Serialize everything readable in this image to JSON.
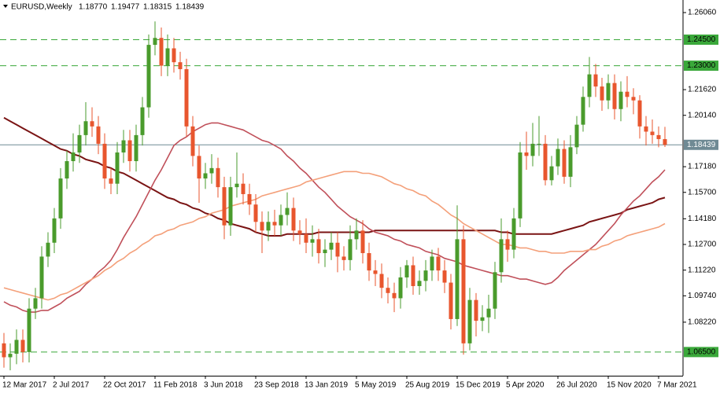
{
  "chart_data": {
    "type": "candlestick",
    "title": "EURUSD,Weekly",
    "quote_labels": [
      "1.18770",
      "1.19477",
      "1.18315",
      "1.18439"
    ],
    "categories": [
      "12 Mar 2017",
      null,
      null,
      null,
      null,
      null,
      null,
      null,
      "2 Jul 2017",
      null,
      null,
      null,
      null,
      null,
      null,
      null,
      "22 Oct 2017",
      null,
      null,
      null,
      null,
      null,
      null,
      null,
      "11 Feb 2018",
      null,
      null,
      null,
      null,
      null,
      null,
      null,
      "3 Jun 2018",
      null,
      null,
      null,
      null,
      null,
      null,
      null,
      "23 Sep 2018",
      null,
      null,
      null,
      null,
      null,
      null,
      null,
      "13 Jan 2019",
      null,
      null,
      null,
      null,
      null,
      null,
      null,
      "5 May 2019",
      null,
      null,
      null,
      null,
      null,
      null,
      null,
      "25 Aug 2019",
      null,
      null,
      null,
      null,
      null,
      null,
      null,
      "15 Dec 2019",
      null,
      null,
      null,
      null,
      null,
      null,
      null,
      "5 Apr 2020",
      null,
      null,
      null,
      null,
      null,
      null,
      null,
      "26 Jul 2020",
      null,
      null,
      null,
      null,
      null,
      null,
      null,
      "15 Nov 2020",
      null,
      null,
      null,
      null,
      null,
      null,
      null,
      "7 Mar 2021",
      null
    ],
    "open": [
      1.07,
      1.062,
      1.064,
      1.072,
      1.065,
      1.09,
      1.096,
      1.12,
      1.128,
      1.142,
      1.165,
      1.175,
      1.18,
      1.19,
      1.198,
      1.195,
      1.185,
      1.165,
      1.162,
      1.18,
      1.187,
      1.175,
      1.19,
      1.206,
      1.242,
      1.246,
      1.23,
      1.24,
      1.232,
      1.228,
      1.195,
      1.178,
      1.165,
      1.168,
      1.171,
      1.16,
      1.138,
      1.16,
      1.162,
      1.156,
      1.15,
      1.14,
      1.135,
      1.14,
      1.138,
      1.144,
      1.148,
      1.135,
      1.133,
      1.128,
      1.13,
      1.122,
      1.124,
      1.128,
      1.12,
      1.118,
      1.13,
      1.135,
      1.122,
      1.112,
      1.11,
      1.102,
      1.099,
      1.096,
      1.108,
      1.115,
      1.103,
      1.106,
      1.112,
      1.12,
      1.112,
      1.105,
      1.084,
      1.13,
      1.07,
      1.095,
      1.083,
      1.085,
      1.09,
      1.111,
      1.13,
      1.124,
      1.142,
      1.18,
      1.178,
      1.185,
      1.185,
      1.164,
      1.172,
      1.182,
      1.166,
      1.183,
      1.196,
      1.212,
      1.225,
      1.218,
      1.21,
      1.22,
      1.205,
      1.215,
      1.212,
      1.21,
      1.195,
      1.192,
      1.19,
      1.1877
    ],
    "high": [
      1.076,
      1.07,
      1.078,
      1.078,
      1.096,
      1.102,
      1.126,
      1.134,
      1.148,
      1.171,
      1.181,
      1.191,
      1.196,
      1.209,
      1.206,
      1.201,
      1.191,
      1.171,
      1.186,
      1.193,
      1.193,
      1.196,
      1.212,
      1.248,
      1.2555,
      1.252,
      1.248,
      1.246,
      1.238,
      1.234,
      1.201,
      1.184,
      1.174,
      1.179,
      1.177,
      1.166,
      1.166,
      1.18,
      1.168,
      1.162,
      1.156,
      1.146,
      1.146,
      1.147,
      1.15,
      1.157,
      1.154,
      1.141,
      1.142,
      1.138,
      1.136,
      1.13,
      1.134,
      1.134,
      1.126,
      1.138,
      1.142,
      1.141,
      1.128,
      1.118,
      1.116,
      1.108,
      1.105,
      1.114,
      1.118,
      1.12,
      1.112,
      1.118,
      1.124,
      1.125,
      1.118,
      1.11,
      1.1495,
      1.138,
      1.102,
      1.099,
      1.092,
      1.098,
      1.117,
      1.142,
      1.135,
      1.148,
      1.186,
      1.192,
      1.197,
      1.201,
      1.19,
      1.178,
      1.188,
      1.187,
      1.19,
      1.201,
      1.218,
      1.235,
      1.231,
      1.223,
      1.225,
      1.225,
      1.221,
      1.224,
      1.217,
      1.213,
      1.201,
      1.199,
      1.195,
      1.19477
    ],
    "low": [
      1.056,
      1.0545,
      1.058,
      1.059,
      1.059,
      1.084,
      1.09,
      1.114,
      1.122,
      1.136,
      1.159,
      1.169,
      1.174,
      1.184,
      1.189,
      1.179,
      1.159,
      1.156,
      1.156,
      1.174,
      1.169,
      1.169,
      1.184,
      1.2,
      1.236,
      1.224,
      1.224,
      1.226,
      1.222,
      1.189,
      1.172,
      1.151,
      1.159,
      1.162,
      1.154,
      1.13,
      1.132,
      1.154,
      1.15,
      1.144,
      1.134,
      1.122,
      1.129,
      1.132,
      1.132,
      1.138,
      1.129,
      1.127,
      1.122,
      1.12,
      1.116,
      1.114,
      1.118,
      1.111,
      1.112,
      1.112,
      1.124,
      1.116,
      1.106,
      1.103,
      1.096,
      1.093,
      1.088,
      1.09,
      1.102,
      1.098,
      1.098,
      1.1,
      1.106,
      1.106,
      1.099,
      1.078,
      1.08,
      1.0635,
      1.066,
      1.074,
      1.077,
      1.076,
      1.084,
      1.105,
      1.117,
      1.119,
      1.137,
      1.17,
      1.172,
      1.178,
      1.161,
      1.161,
      1.167,
      1.162,
      1.16,
      1.179,
      1.192,
      1.206,
      1.212,
      1.204,
      1.205,
      1.199,
      1.198,
      1.206,
      1.202,
      1.188,
      1.184,
      1.185,
      1.183,
      1.18315
    ],
    "close": [
      1.062,
      1.064,
      1.072,
      1.065,
      1.09,
      1.096,
      1.12,
      1.128,
      1.142,
      1.165,
      1.175,
      1.18,
      1.19,
      1.198,
      1.195,
      1.185,
      1.165,
      1.162,
      1.18,
      1.187,
      1.175,
      1.19,
      1.206,
      1.242,
      1.246,
      1.23,
      1.24,
      1.232,
      1.228,
      1.195,
      1.178,
      1.165,
      1.168,
      1.171,
      1.16,
      1.138,
      1.16,
      1.162,
      1.156,
      1.15,
      1.14,
      1.135,
      1.14,
      1.138,
      1.144,
      1.148,
      1.135,
      1.133,
      1.128,
      1.13,
      1.122,
      1.124,
      1.128,
      1.12,
      1.118,
      1.13,
      1.135,
      1.122,
      1.112,
      1.11,
      1.102,
      1.099,
      1.096,
      1.108,
      1.115,
      1.103,
      1.106,
      1.112,
      1.12,
      1.112,
      1.105,
      1.084,
      1.13,
      1.07,
      1.095,
      1.083,
      1.085,
      1.09,
      1.111,
      1.13,
      1.124,
      1.142,
      1.18,
      1.178,
      1.185,
      1.185,
      1.164,
      1.172,
      1.182,
      1.166,
      1.183,
      1.196,
      1.212,
      1.225,
      1.218,
      1.21,
      1.22,
      1.205,
      1.215,
      1.212,
      1.21,
      1.195,
      1.192,
      1.19,
      1.1877,
      1.18439
    ],
    "up_color": "#4a9b2c",
    "down_color": "#e8562e",
    "overlays": [
      {
        "color": "#7a1414",
        "values": [
          1.2,
          1.198,
          1.196,
          1.194,
          1.192,
          1.19,
          1.188,
          1.186,
          1.184,
          1.182,
          1.181,
          1.179,
          1.178,
          1.176,
          1.175,
          1.174,
          1.172,
          1.171,
          1.169,
          1.168,
          1.166,
          1.164,
          1.162,
          1.16,
          1.158,
          1.156,
          1.154,
          1.153,
          1.151,
          1.15,
          1.148,
          1.147,
          1.145,
          1.144,
          1.142,
          1.141,
          1.139,
          1.138,
          1.137,
          1.136,
          1.134,
          1.133,
          1.132,
          1.132,
          1.132,
          1.133,
          1.133,
          1.133,
          1.133,
          1.133,
          1.134,
          1.134,
          1.134,
          1.134,
          1.134,
          1.134,
          1.134,
          1.134,
          1.134,
          1.135,
          1.135,
          1.135,
          1.135,
          1.135,
          1.135,
          1.135,
          1.135,
          1.135,
          1.135,
          1.135,
          1.135,
          1.135,
          1.135,
          1.135,
          1.135,
          1.135,
          1.135,
          1.135,
          1.135,
          1.134,
          1.134,
          1.133,
          1.133,
          1.133,
          1.133,
          1.133,
          1.133,
          1.133,
          1.134,
          1.135,
          1.136,
          1.137,
          1.138,
          1.14,
          1.141,
          1.142,
          1.143,
          1.144,
          1.145,
          1.147,
          1.148,
          1.149,
          1.15,
          1.151,
          1.153,
          1.154
        ]
      },
      {
        "color": "#c0505a",
        "values": [
          1.094,
          1.092,
          1.091,
          1.089,
          1.088,
          1.088,
          1.089,
          1.089,
          1.091,
          1.093,
          1.096,
          1.098,
          1.1,
          1.104,
          1.107,
          1.111,
          1.114,
          1.118,
          1.124,
          1.131,
          1.137,
          1.143,
          1.15,
          1.157,
          1.164,
          1.17,
          1.177,
          1.184,
          1.187,
          1.189,
          1.192,
          1.194,
          1.196,
          1.197,
          1.197,
          1.196,
          1.195,
          1.194,
          1.193,
          1.191,
          1.189,
          1.187,
          1.186,
          1.184,
          1.182,
          1.178,
          1.175,
          1.171,
          1.168,
          1.164,
          1.16,
          1.157,
          1.153,
          1.149,
          1.146,
          1.143,
          1.141,
          1.139,
          1.136,
          1.134,
          1.133,
          1.132,
          1.13,
          1.129,
          1.127,
          1.126,
          1.125,
          1.123,
          1.122,
          1.121,
          1.119,
          1.118,
          1.117,
          1.115,
          1.114,
          1.113,
          1.112,
          1.111,
          1.11,
          1.109,
          1.109,
          1.108,
          1.107,
          1.107,
          1.106,
          1.105,
          1.104,
          1.105,
          1.108,
          1.112,
          1.115,
          1.118,
          1.121,
          1.124,
          1.127,
          1.131,
          1.135,
          1.139,
          1.144,
          1.148,
          1.152,
          1.155,
          1.159,
          1.163,
          1.166,
          1.17
        ]
      },
      {
        "color": "#f4a07a",
        "values": [
          1.102,
          1.101,
          1.1,
          1.099,
          1.098,
          1.097,
          1.096,
          1.095,
          1.096,
          1.098,
          1.099,
          1.101,
          1.103,
          1.105,
          1.107,
          1.109,
          1.112,
          1.114,
          1.117,
          1.119,
          1.122,
          1.124,
          1.127,
          1.129,
          1.132,
          1.133,
          1.135,
          1.136,
          1.138,
          1.139,
          1.14,
          1.142,
          1.143,
          1.145,
          1.146,
          1.147,
          1.149,
          1.15,
          1.151,
          1.152,
          1.153,
          1.155,
          1.156,
          1.157,
          1.158,
          1.159,
          1.16,
          1.161,
          1.163,
          1.164,
          1.165,
          1.166,
          1.167,
          1.168,
          1.169,
          1.169,
          1.169,
          1.168,
          1.168,
          1.167,
          1.166,
          1.164,
          1.162,
          1.161,
          1.159,
          1.158,
          1.156,
          1.155,
          1.152,
          1.15,
          1.147,
          1.144,
          1.142,
          1.139,
          1.137,
          1.135,
          1.133,
          1.131,
          1.129,
          1.127,
          1.127,
          1.126,
          1.125,
          1.125,
          1.124,
          1.123,
          1.123,
          1.122,
          1.122,
          1.122,
          1.123,
          1.123,
          1.123,
          1.124,
          1.124,
          1.126,
          1.127,
          1.129,
          1.13,
          1.132,
          1.133,
          1.134,
          1.135,
          1.136,
          1.137,
          1.139
        ]
      }
    ],
    "ylim": [
      1.05136,
      1.26785
    ],
    "yticks": [
      {
        "value": 1.2606,
        "label": "1.26060"
      },
      {
        "value": 1.2162,
        "label": "1.21620"
      },
      {
        "value": 1.2014,
        "label": "1.20140"
      },
      {
        "value": 1.1718,
        "label": "1.17180"
      },
      {
        "value": 1.157,
        "label": "1.15700"
      },
      {
        "value": 1.1418,
        "label": "1.14180"
      },
      {
        "value": 1.127,
        "label": "1.12700"
      },
      {
        "value": 1.1122,
        "label": "1.11220"
      },
      {
        "value": 1.0974,
        "label": "1.09740"
      },
      {
        "value": 1.0822,
        "label": "1.08220"
      }
    ],
    "levels": [
      {
        "value": 1.245,
        "label": "1.24500"
      },
      {
        "value": 1.23,
        "label": "1.23000"
      },
      {
        "value": 1.065,
        "label": "1.06500"
      }
    ],
    "level_color": "#3aa83a",
    "last_price": {
      "value": 1.18439,
      "label": "1.18439"
    },
    "last_price_color": "#6f8a94",
    "grid": false
  }
}
